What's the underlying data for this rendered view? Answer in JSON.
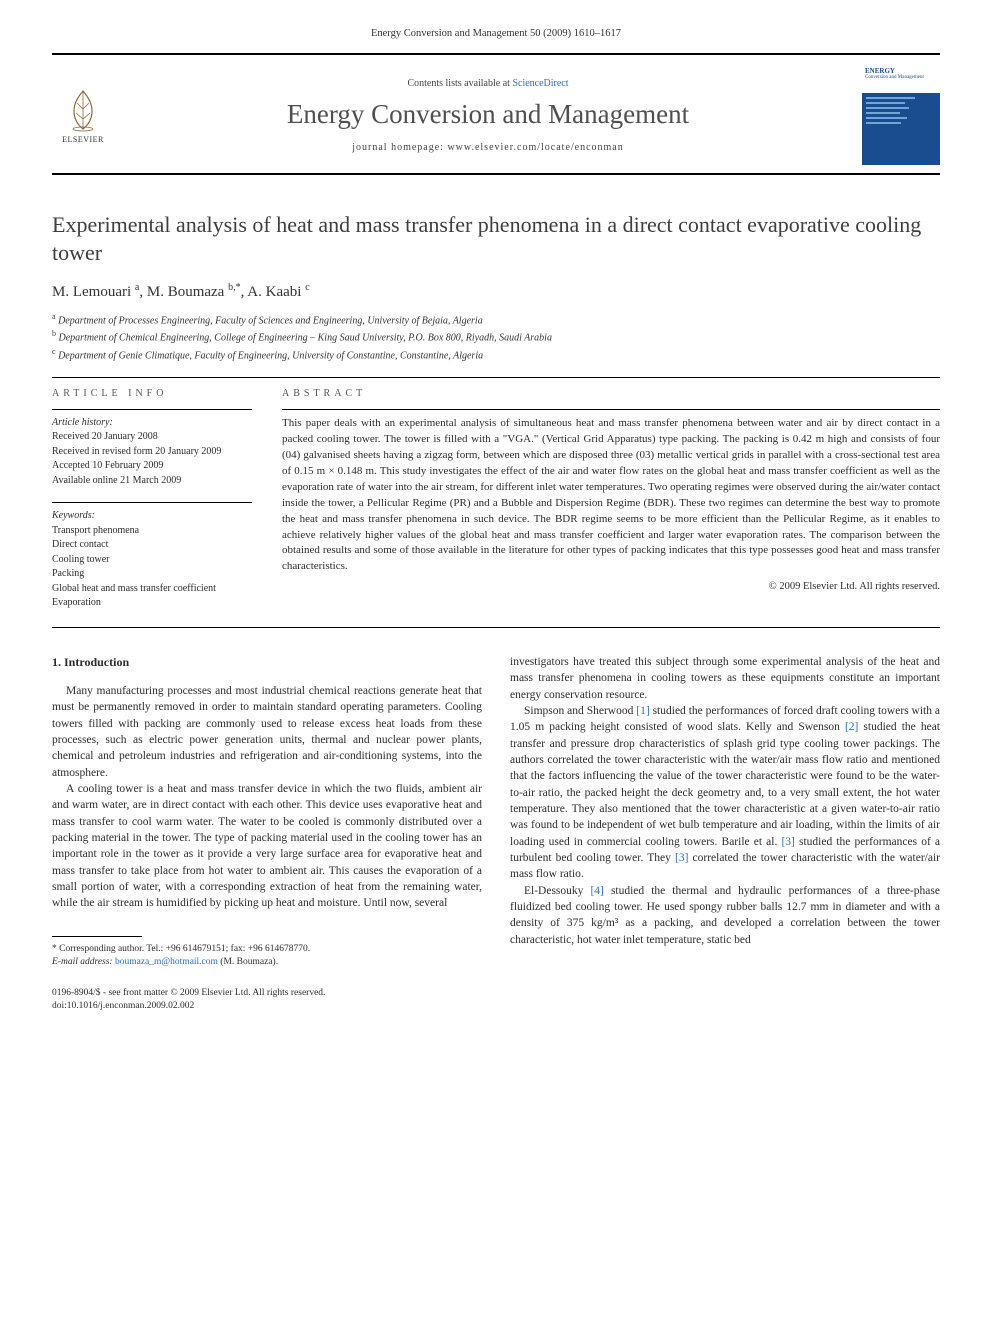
{
  "journal_ref": "Energy Conversion and Management 50 (2009) 1610–1617",
  "header": {
    "contents_prefix": "Contents lists available at ",
    "contents_link": "ScienceDirect",
    "journal_name": "Energy Conversion and Management",
    "homepage_prefix": "journal homepage: ",
    "homepage_url": "www.elsevier.com/locate/enconman",
    "publisher": "ELSEVIER",
    "cover_title": "ENERGY",
    "cover_subtitle": "Conversion and Management"
  },
  "article": {
    "title": "Experimental analysis of heat and mass transfer phenomena in a direct contact evaporative cooling tower",
    "authors": [
      {
        "name": "M. Lemouari",
        "marker": "a"
      },
      {
        "name": "M. Boumaza",
        "marker": "b,*"
      },
      {
        "name": "A. Kaabi",
        "marker": "c"
      }
    ],
    "affiliations": [
      {
        "marker": "a",
        "text": "Department of Processes Engineering, Faculty of Sciences and Engineering, University of Bejaia, Algeria"
      },
      {
        "marker": "b",
        "text": "Department of Chemical Engineering, College of Engineering – King Saud University, P.O. Box 800, Riyadh, Saudi Arabia"
      },
      {
        "marker": "c",
        "text": "Department of Genie Climatique, Faculty of Engineering, University of Constantine, Constantine, Algeria"
      }
    ]
  },
  "info": {
    "info_header": "ARTICLE INFO",
    "history_title": "Article history:",
    "history": [
      "Received 20 January 2008",
      "Received in revised form 20 January 2009",
      "Accepted 10 February 2009",
      "Available online 21 March 2009"
    ],
    "keywords_title": "Keywords:",
    "keywords": [
      "Transport phenomena",
      "Direct contact",
      "Cooling tower",
      "Packing",
      "Global heat and mass transfer coefficient",
      "Evaporation"
    ]
  },
  "abstract": {
    "header": "ABSTRACT",
    "text": "This paper deals with an experimental analysis of simultaneous heat and mass transfer phenomena between water and air by direct contact in a packed cooling tower. The tower is filled with a \"VGA.\" (Vertical Grid Apparatus) type packing. The packing is 0.42 m high and consists of four (04) galvanised sheets having a zigzag form, between which are disposed three (03) metallic vertical grids in parallel with a cross-sectional test area of 0.15 m × 0.148 m. This study investigates the effect of the air and water flow rates on the global heat and mass transfer coefficient as well as the evaporation rate of water into the air stream, for different inlet water temperatures. Two operating regimes were observed during the air/water contact inside the tower, a Pellicular Regime (PR) and a Bubble and Dispersion Regime (BDR). These two regimes can determine the best way to promote the heat and mass transfer phenomena in such device. The BDR regime seems to be more efficient than the Pellicular Regime, as it enables to achieve relatively higher values of the global heat and mass transfer coefficient and larger water evaporation rates. The comparison between the obtained results and some of those available in the literature for other types of packing indicates that this type possesses good heat and mass transfer characteristics.",
    "copyright": "© 2009 Elsevier Ltd. All rights reserved."
  },
  "intro": {
    "heading": "1. Introduction",
    "left_paragraphs": [
      "Many manufacturing processes and most industrial chemical reactions generate heat that must be permanently removed in order to maintain standard operating parameters. Cooling towers filled with packing are commonly used to release excess heat loads from these processes, such as electric power generation units, thermal and nuclear power plants, chemical and petroleum industries and refrigeration and air-conditioning systems, into the atmosphere.",
      "A cooling tower is a heat and mass transfer device in which the two fluids, ambient air and warm water, are in direct contact with each other. This device uses evaporative heat and mass transfer to cool warm water. The water to be cooled is commonly distributed over a packing material in the tower. The type of packing material used in the cooling tower has an important role in the tower as it provide a very large surface area for evaporative heat and mass transfer to take place from hot water to ambient air. This causes the evaporation of a small portion of water, with a corresponding extraction of heat from the remaining water, while the air stream is humidified by picking up heat and moisture. Until now, several"
    ],
    "right_paragraphs": [
      "investigators have treated this subject through some experimental analysis of the heat and mass transfer phenomena in cooling towers as these equipments constitute an important energy conservation resource.",
      "Simpson and Sherwood [1] studied the performances of forced draft cooling towers with a 1.05 m packing height consisted of wood slats. Kelly and Swenson [2] studied the heat transfer and pressure drop characteristics of splash grid type cooling tower packings. The authors correlated the tower characteristic with the water/air mass flow ratio and mentioned that the factors influencing the value of the tower characteristic were found to be the water-to-air ratio, the packed height the deck geometry and, to a very small extent, the hot water temperature. They also mentioned that the tower characteristic at a given water-to-air ratio was found to be independent of wet bulb temperature and air loading, within the limits of air loading used in commercial cooling towers. Barile et al. [3] studied the performances of a turbulent bed cooling tower. They [3] correlated the tower characteristic with the water/air mass flow ratio.",
      "El-Dessouky [4] studied the thermal and hydraulic performances of a three-phase fluidized bed cooling tower. He used spongy rubber balls 12.7 mm in diameter and with a density of 375 kg/m³ as a packing, and developed a correlation between the tower characteristic, hot water inlet temperature, static bed"
    ]
  },
  "footnote": {
    "corresponding_label": "* Corresponding author. Tel.: +96 614679151; fax: +96 614678770.",
    "email_label": "E-mail address:",
    "email": "boumaza_m@hotmail.com",
    "email_suffix": "(M. Boumaza)."
  },
  "footer": {
    "issn_line": "0196-8904/$ - see front matter © 2009 Elsevier Ltd. All rights reserved.",
    "doi_line": "doi:10.1016/j.enconman.2009.02.002"
  },
  "colors": {
    "link": "#2a6fc7",
    "cover_bg": "#1a4d8f",
    "text": "#2c2c2c",
    "title": "#3e3e3e"
  }
}
